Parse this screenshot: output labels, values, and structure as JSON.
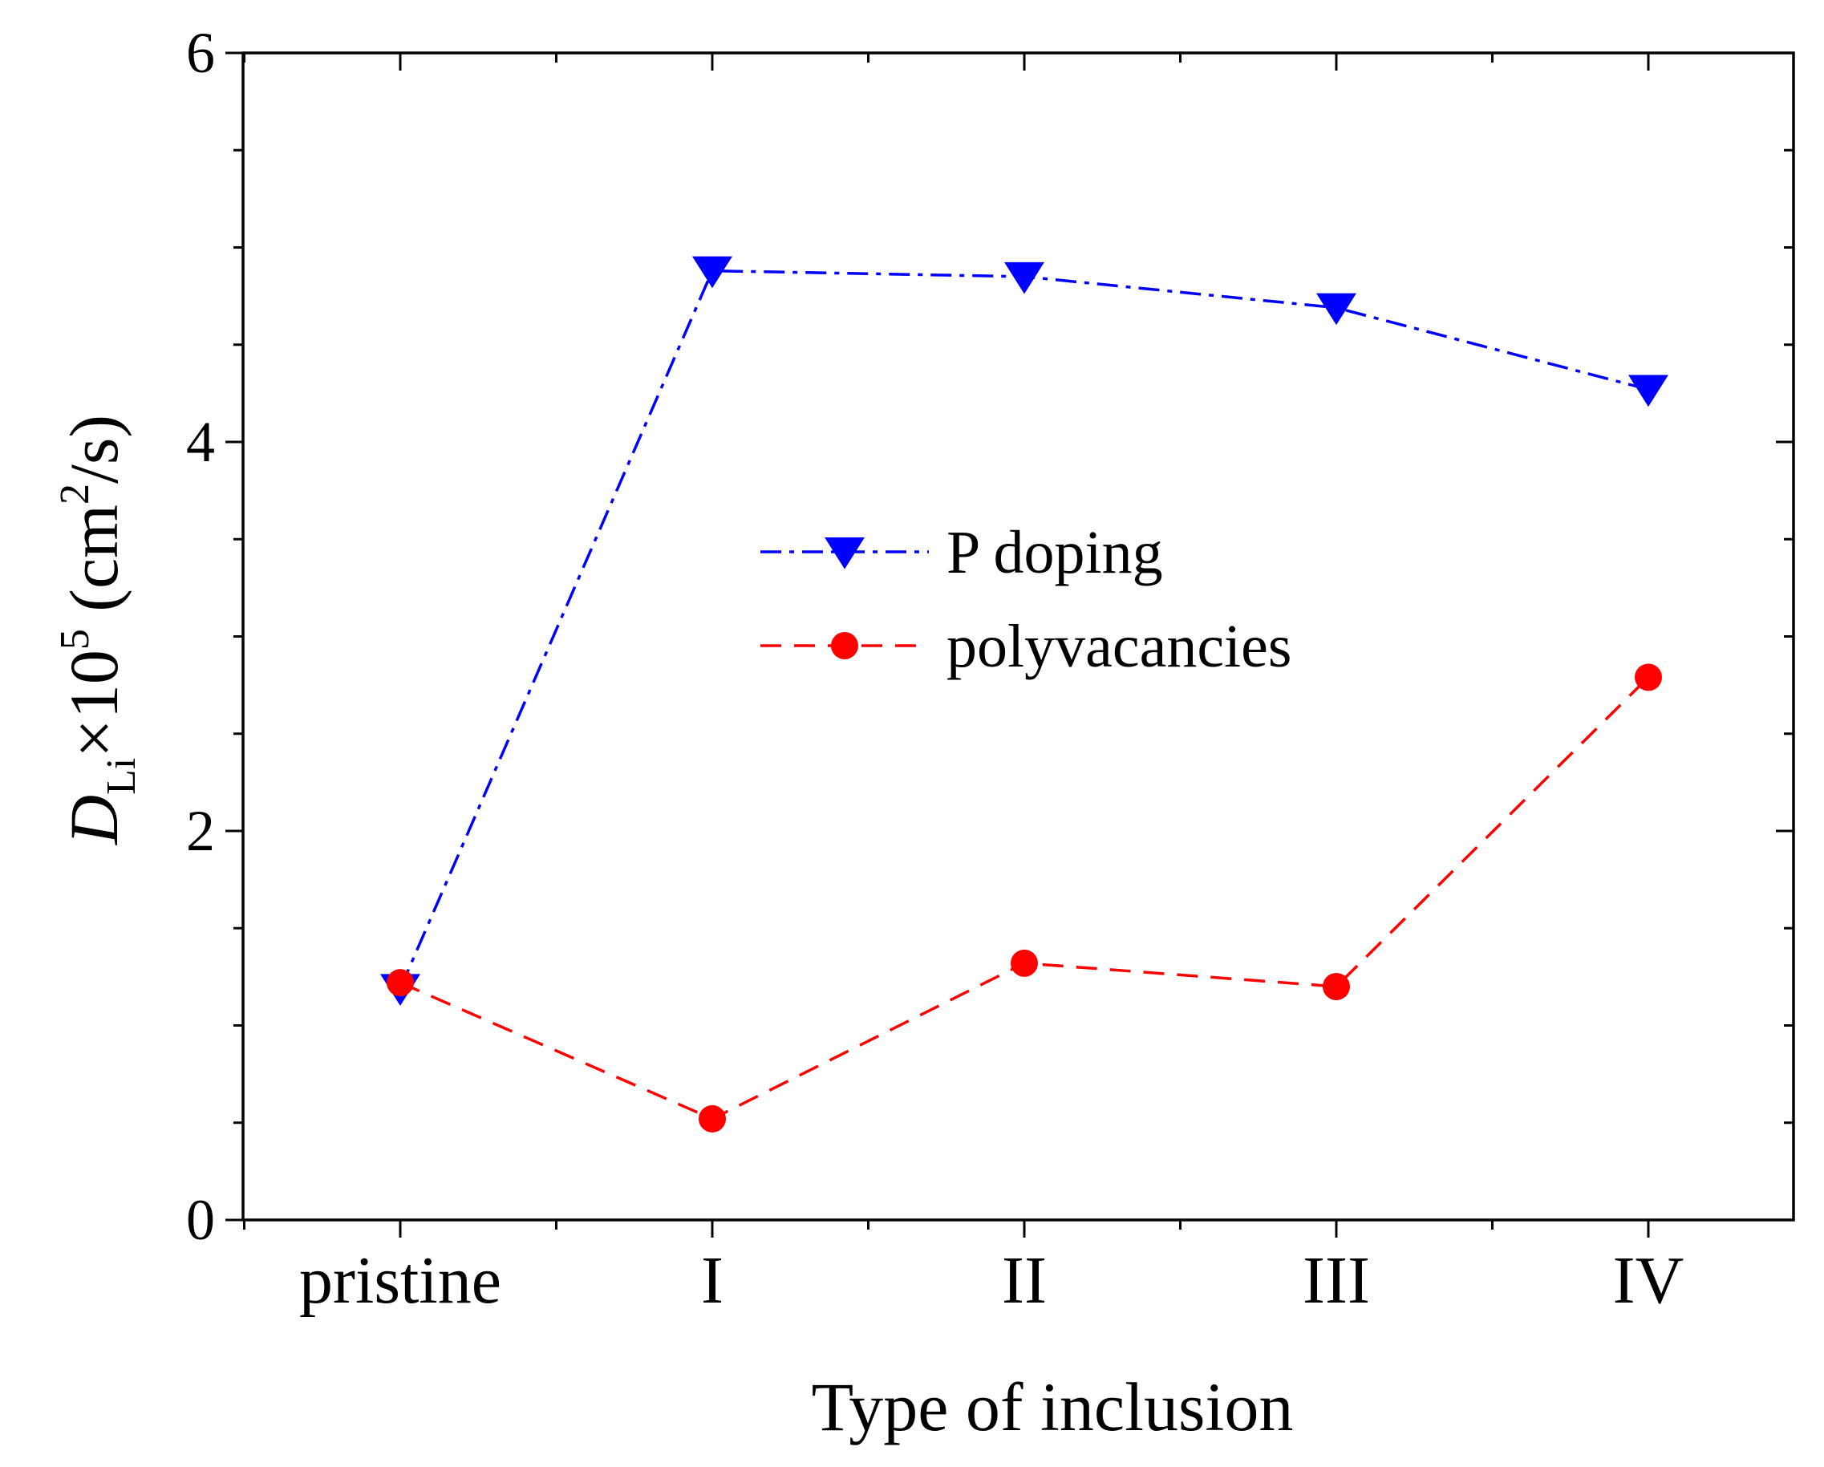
{
  "chart_data": {
    "type": "line",
    "title": "",
    "xlabel": "Type of inclusion",
    "ylabel": {
      "symbol": "D",
      "subscript": "Li",
      "times": "×10",
      "exponent": "5",
      "unit_open": " (cm",
      "unit_exp": "2",
      "unit_close": "/s)"
    },
    "categories": [
      "pristine",
      "I",
      "II",
      "III",
      "IV"
    ],
    "ylim": [
      0,
      6
    ],
    "yticks": [
      "0",
      "2",
      "4",
      "6"
    ],
    "legend_position": "center",
    "series": [
      {
        "name": "P doping",
        "values": [
          1.19,
          4.88,
          4.85,
          4.69,
          4.27
        ],
        "color": "#0000ff",
        "marker": "triangle-down",
        "linestyle": "dash-dot"
      },
      {
        "name": "polyvacancies",
        "values": [
          1.22,
          0.52,
          1.32,
          1.2,
          2.79
        ],
        "color": "#ff0000",
        "marker": "circle",
        "linestyle": "dashed"
      }
    ]
  }
}
